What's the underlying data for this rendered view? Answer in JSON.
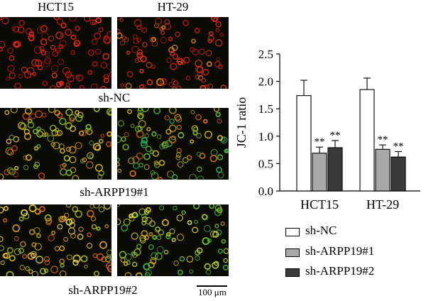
{
  "micrographs": {
    "columns": [
      "HCT15",
      "HT-29"
    ],
    "rows": [
      "sh-NC",
      "sh-ARPP19#1",
      "sh-ARPP19#2"
    ],
    "scale_bar": "100 μm"
  },
  "chart_data": {
    "type": "bar",
    "categories": [
      "HCT15",
      "HT-29"
    ],
    "ylabel": "JC-1 ratio",
    "ylim": [
      0,
      2.5
    ],
    "yticks": [
      "0.0",
      "0.5",
      "1.0",
      "1.5",
      "2.0",
      "2.5"
    ],
    "series": [
      {
        "name": "sh-NC",
        "values": [
          1.74,
          1.85
        ],
        "errors": [
          0.28,
          0.21
        ],
        "color": "#ffffff",
        "significance": [
          "",
          ""
        ]
      },
      {
        "name": "sh-ARPP19#1",
        "values": [
          0.69,
          0.76
        ],
        "errors": [
          0.11,
          0.08
        ],
        "color": "#a8a8a8",
        "significance": [
          "**",
          "**"
        ]
      },
      {
        "name": "sh-ARPP19#2",
        "values": [
          0.79,
          0.62
        ],
        "errors": [
          0.13,
          0.1
        ],
        "color": "#3a3a3a",
        "significance": [
          "**",
          "**"
        ]
      }
    ]
  }
}
